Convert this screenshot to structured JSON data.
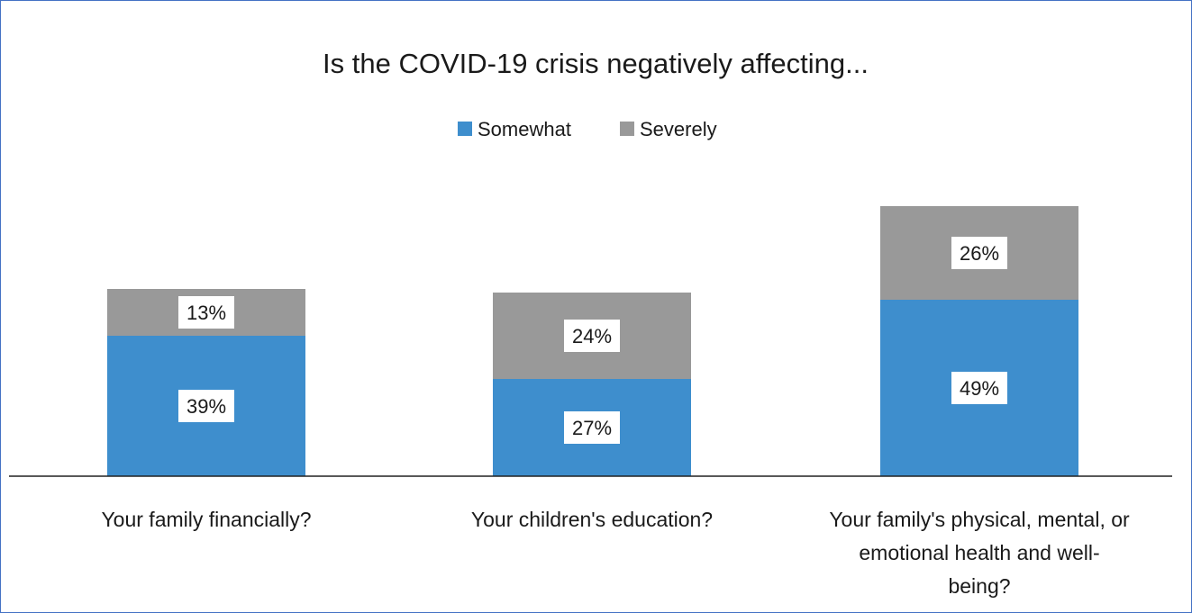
{
  "chart_data": {
    "type": "bar",
    "stacked": true,
    "title": "Is the COVID-19 crisis negatively affecting...",
    "categories": [
      [
        "Your family financially?"
      ],
      [
        "Your children's education?"
      ],
      [
        "Your family's physical, mental, or",
        "emotional health and well-",
        "being?"
      ]
    ],
    "series": [
      {
        "name": "Somewhat",
        "color": "#3e8ecd",
        "values": [
          39,
          27,
          49
        ],
        "labels": [
          "39%",
          "27%",
          "49%"
        ]
      },
      {
        "name": "Severely",
        "color": "#999999",
        "values": [
          13,
          24,
          26
        ],
        "labels": [
          "13%",
          "24%",
          "26%"
        ]
      }
    ],
    "legend": {
      "position": "top"
    },
    "ylim": [
      0,
      100
    ],
    "grid": false
  }
}
